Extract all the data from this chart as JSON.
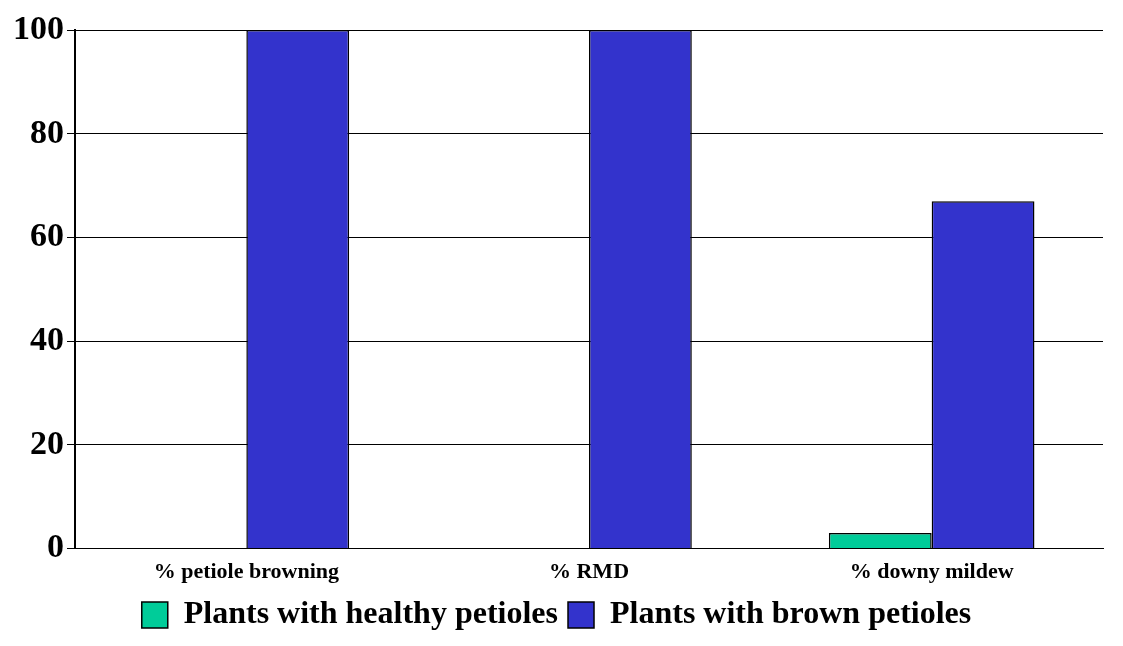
{
  "chart_data": {
    "type": "bar",
    "categories": [
      "% petiole browning",
      "% RMD",
      "% downy mildew"
    ],
    "series": [
      {
        "name": "Plants with healthy petioles",
        "color": "#00cc99",
        "values": [
          0,
          0,
          3
        ]
      },
      {
        "name": "Plants with brown petioles",
        "color": "#3333cc",
        "values": [
          100,
          100,
          67
        ]
      }
    ],
    "ylim": [
      0,
      100
    ],
    "yticks": [
      0,
      20,
      40,
      60,
      80,
      100
    ],
    "grid": "y",
    "legend": "bottom"
  }
}
